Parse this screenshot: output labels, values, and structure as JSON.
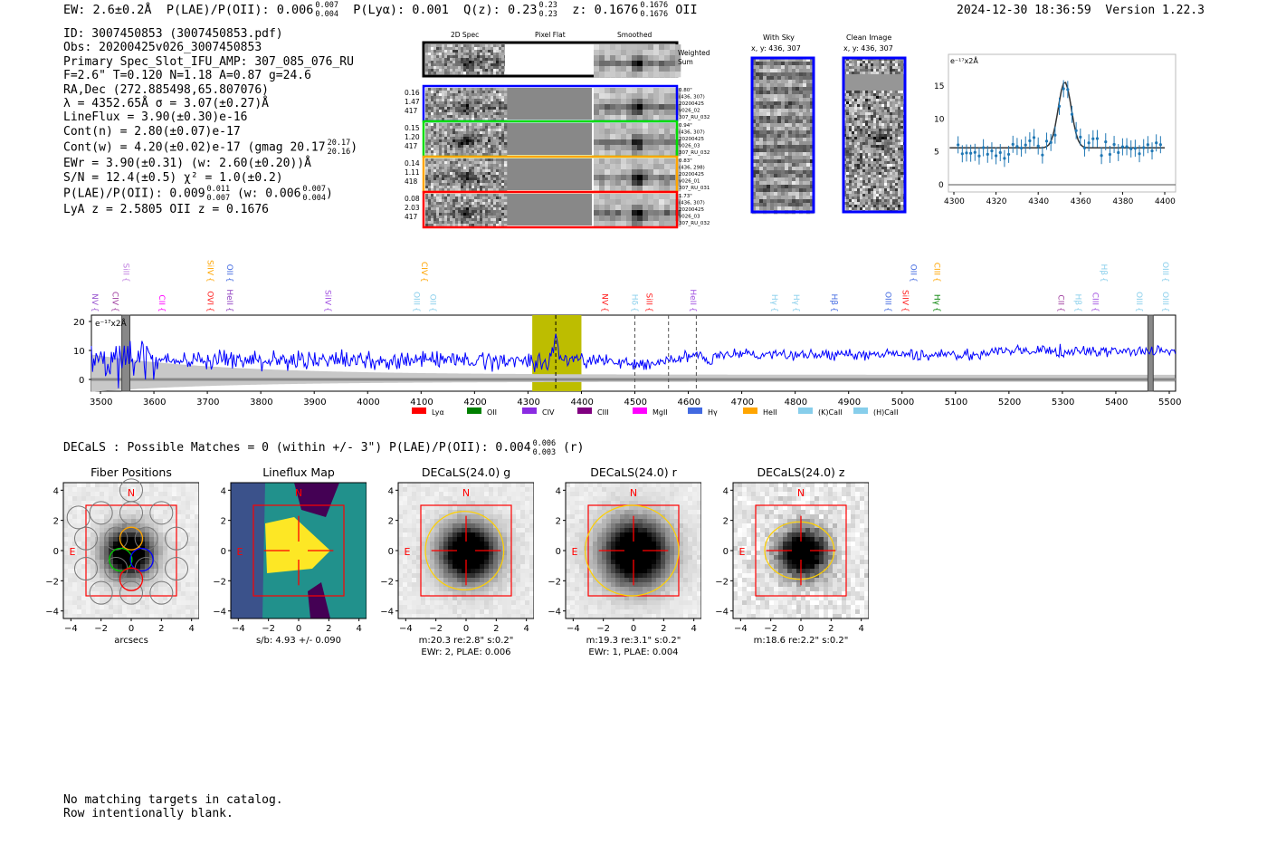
{
  "header": {
    "ew": "EW: 2.6±0.2Å",
    "plae_label": "P(LAE)/P(OII): 0.006",
    "plae_hi": "0.007",
    "plae_lo": "0.004",
    "plya": "P(Lyα): 0.001",
    "qz_label": "Q(z): 0.23",
    "qz_hi": "0.23",
    "qz_lo": "0.23",
    "z_label": "z: 0.1676",
    "z_hi": "0.1676",
    "z_lo": "0.1676",
    "z_type": "OII",
    "timestamp": "2024-12-30 18:36:59",
    "version": "Version 1.22.3"
  },
  "info": {
    "id": "ID: 3007450853 (3007450853.pdf)",
    "obs": "Obs: 20200425v026_3007450853",
    "primary": "Primary Spec_Slot_IFU_AMP: 307_085_076_RU",
    "params": "F=2.6\"  T=0.120  N=1.18  A=0.87  g=24.6",
    "radec": "RA,Dec (272.885498,65.807076)",
    "lambda": "λ = 4352.65Å  σ = 3.07(±0.27)Å",
    "lineflux": "LineFlux = 3.90(±0.30)e-16",
    "contn": "Cont(n) = 2.80(±0.07)e-17",
    "contw": "Cont(w) = 4.20(±0.02)e-17 (gmag 20.17",
    "contw_hi": "20.17",
    "contw_lo": "20.16",
    "contw_end": ")",
    "ewr": "EWr = 3.90(±0.31) (w: 2.60(±0.20))Å",
    "sn": "S/N = 12.4(±0.5)  χ² = 1.0(±0.2)",
    "plae": "P(LAE)/P(OII): 0.009",
    "plae_hi": "0.011",
    "plae_lo": "0.007",
    "plae_w": "(w: 0.006",
    "plae_w_hi": "0.007",
    "plae_w_lo": "0.004",
    "plae_end": ")",
    "z": "LyA z = 2.5805   OII z = 0.1676"
  },
  "spec2d": {
    "col_titles": [
      "2D Spec",
      "Pixel Flat",
      "Smoothed"
    ],
    "weighted_label": [
      "Weighted",
      "Sum"
    ],
    "rows": [
      {
        "color": "#0000ff",
        "left": [
          "0.16",
          "1.47",
          "417"
        ],
        "right": [
          "0.80\"",
          "(436, 307)",
          "20200425",
          "v026_02",
          "307_RU_032"
        ]
      },
      {
        "color": "#00dd00",
        "left": [
          "0.15",
          "1.20",
          "417"
        ],
        "right": [
          "0.94\"",
          "(436, 307)",
          "20200425",
          "v026_03",
          "307_RU_032"
        ]
      },
      {
        "color": "#ffa500",
        "left": [
          "0.14",
          "1.11",
          "418"
        ],
        "right": [
          "0.83\"",
          "(436, 298)",
          "20200425",
          "v026_01",
          "307_RU_031"
        ]
      },
      {
        "color": "#ff0000",
        "left": [
          "0.08",
          "2.03",
          "417"
        ],
        "right": [
          "1.73\"",
          "(436, 307)",
          "20200425",
          "v026_03",
          "307_RU_032"
        ]
      }
    ]
  },
  "sky": {
    "with_sky": "With Sky",
    "with_sky_xy": "x, y: 436, 307",
    "clean": "Clean Image",
    "clean_xy": "x, y: 436, 307"
  },
  "inset": {
    "unit": "e⁻¹⁷x2Å",
    "xticks": [
      "4300",
      "4320",
      "4340",
      "4360",
      "4380",
      "4400"
    ],
    "yticks": [
      "0",
      "5",
      "10",
      "15"
    ]
  },
  "spectrum": {
    "unit": "e⁻¹⁷x2Å",
    "xticks": [
      "3500",
      "3600",
      "3700",
      "3800",
      "3900",
      "4000",
      "4100",
      "4200",
      "4300",
      "4400",
      "4500",
      "4600",
      "4700",
      "4800",
      "4900",
      "5000",
      "5100",
      "5200",
      "5300",
      "5400",
      "5500"
    ],
    "yticks": [
      "20",
      "10",
      "0"
    ],
    "lines": [
      {
        "t": "NV",
        "w": 3490,
        "c": "#9b59d0",
        "r": 0
      },
      {
        "t": "CIV",
        "w": 3528,
        "c": "#a040a0",
        "r": 0
      },
      {
        "t": "SiII",
        "w": 3548,
        "c": "#c080e0",
        "r": 0
      },
      {
        "t": "CII",
        "w": 3615,
        "c": "#ff00ff",
        "r": 0
      },
      {
        "t": "OVI",
        "w": 3706,
        "c": "#ff2020",
        "r": 0
      },
      {
        "t": "HeII",
        "w": 3742,
        "c": "#9040c0",
        "r": 0
      },
      {
        "t": "SiIV",
        "w": 3926,
        "c": "#a050e0",
        "r": 0
      },
      {
        "t": "OIII",
        "w": 4092,
        "c": "#87ceeb",
        "r": 0
      },
      {
        "t": "CIV",
        "w": 4106,
        "c": "#ffa500",
        "r": 0
      },
      {
        "t": "OII",
        "w": 4122,
        "c": "#87ceeb",
        "r": 0
      },
      {
        "t": "NV",
        "w": 4444,
        "c": "#ff2020",
        "r": 0
      },
      {
        "t": "Hδ",
        "w": 4500,
        "c": "#87ceeb",
        "r": 0
      },
      {
        "t": "SiII",
        "w": 4527,
        "c": "#ff2020",
        "r": 0
      },
      {
        "t": "HeII",
        "w": 4609,
        "c": "#a050e0",
        "r": 0
      },
      {
        "t": "Hγ",
        "w": 4762,
        "c": "#87ceeb",
        "r": 0
      },
      {
        "t": "Hγ",
        "w": 4802,
        "c": "#87ceeb",
        "r": 0
      },
      {
        "t": "Hβ",
        "w": 4873,
        "c": "#4169e1",
        "r": 0
      },
      {
        "t": "OIII",
        "w": 4974,
        "c": "#4169e1",
        "r": 0
      },
      {
        "t": "SiIV",
        "w": 5006,
        "c": "#ff2020",
        "r": 0
      },
      {
        "t": "OII",
        "w": 5022,
        "c": "#4169e1",
        "r": 0
      },
      {
        "t": "Hγ",
        "w": 5066,
        "c": "#008000",
        "r": 0
      },
      {
        "t": "CII",
        "w": 5298,
        "c": "#a040a0",
        "r": 0
      },
      {
        "t": "Hβ",
        "w": 5330,
        "c": "#87ceeb",
        "r": 0
      },
      {
        "t": "CIII",
        "w": 5362,
        "c": "#a050e0",
        "r": 0
      },
      {
        "t": "Hβ",
        "w": 5378,
        "c": "#87ceeb",
        "r": 0
      },
      {
        "t": "OIII",
        "w": 5444,
        "c": "#87ceeb",
        "r": 0
      },
      {
        "t": "OIII",
        "w": 5493,
        "c": "#87ceeb",
        "r": 0
      },
      {
        "t": "SiIV",
        "w": 3706,
        "c": "#ffa500",
        "r": 1
      },
      {
        "t": "OII",
        "w": 3742,
        "c": "#4169e1",
        "r": 1
      },
      {
        "t": "CIII",
        "w": 5066,
        "c": "#ffa500",
        "r": 1
      },
      {
        "t": "OIII",
        "w": 5493,
        "c": "#87ceeb",
        "r": 1
      }
    ],
    "legend": [
      {
        "t": "Lyα",
        "c": "#ff0000"
      },
      {
        "t": "OII",
        "c": "#008000"
      },
      {
        "t": "CIV",
        "c": "#8a2be2"
      },
      {
        "t": "CIII",
        "c": "#800080"
      },
      {
        "t": "MgII",
        "c": "#ff00ff"
      },
      {
        "t": "Hγ",
        "c": "#4169e1"
      },
      {
        "t": "HeII",
        "c": "#ffa500"
      },
      {
        "t": "(K)CaII",
        "c": "#87ceeb"
      },
      {
        "t": "(H)CaII",
        "c": "#87ceeb"
      }
    ]
  },
  "decals": {
    "summary": "DECaLS : Possible Matches = 0 (within +/- 3\")  P(LAE)/P(OII): 0.004",
    "hi": "0.006",
    "lo": "0.003",
    "band": "(r)"
  },
  "panels": [
    {
      "title": "Fiber Positions",
      "cap1": "arcsecs",
      "cap2": ""
    },
    {
      "title": "Lineflux Map",
      "cap1": "s/b: 4.93 +/- 0.090",
      "cap2": ""
    },
    {
      "title": "DECaLS(24.0) g",
      "cap1": "m:20.3  re:2.8\"  s:0.2\"",
      "cap2": "EWr: 2, PLAE: 0.006"
    },
    {
      "title": "DECaLS(24.0) r",
      "cap1": "m:19.3  re:3.1\"  s:0.2\"",
      "cap2": "EWr: 1, PLAE: 0.004"
    },
    {
      "title": "DECaLS(24.0) z",
      "cap1": "m:18.6  re:2.2\"  s:0.2\"",
      "cap2": ""
    }
  ],
  "axis_ticks": [
    "−4",
    "−2",
    "0",
    "2",
    "4"
  ],
  "compass": {
    "n": "N",
    "e": "E"
  },
  "footer": {
    "line1": "No matching targets in catalog.",
    "line2": "Row intentionally blank."
  }
}
